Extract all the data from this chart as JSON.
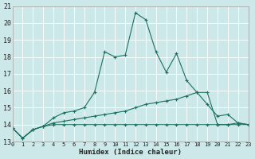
{
  "title": "",
  "xlabel": "Humidex (Indice chaleur)",
  "ylabel": "",
  "bg_color": "#cce8e8",
  "grid_color": "#b0d0d0",
  "line_color": "#1a7060",
  "x_values": [
    0,
    1,
    2,
    3,
    4,
    5,
    6,
    7,
    8,
    9,
    10,
    11,
    12,
    13,
    14,
    15,
    16,
    17,
    18,
    19,
    20,
    21,
    22,
    23
  ],
  "series1": [
    13.8,
    13.2,
    13.7,
    13.9,
    14.4,
    14.7,
    14.8,
    15.0,
    15.9,
    18.3,
    18.0,
    18.1,
    20.6,
    20.2,
    18.3,
    17.1,
    18.2,
    16.6,
    15.9,
    15.2,
    14.5,
    14.6,
    14.1,
    14.0
  ],
  "series2": [
    13.8,
    13.2,
    13.7,
    13.9,
    14.1,
    14.2,
    14.3,
    14.4,
    14.5,
    14.6,
    14.7,
    14.8,
    15.0,
    15.2,
    15.3,
    15.4,
    15.5,
    15.7,
    15.9,
    15.9,
    14.0,
    14.0,
    14.1,
    14.0
  ],
  "series3": [
    13.8,
    13.2,
    13.7,
    13.9,
    14.0,
    14.0,
    14.0,
    14.0,
    14.0,
    14.0,
    14.0,
    14.0,
    14.0,
    14.0,
    14.0,
    14.0,
    14.0,
    14.0,
    14.0,
    14.0,
    14.0,
    14.0,
    14.0,
    14.0
  ],
  "xlim": [
    0,
    23
  ],
  "ylim": [
    13,
    21
  ],
  "yticks": [
    13,
    14,
    15,
    16,
    17,
    18,
    19,
    20,
    21
  ],
  "xticks": [
    0,
    1,
    2,
    3,
    4,
    5,
    6,
    7,
    8,
    9,
    10,
    11,
    12,
    13,
    14,
    15,
    16,
    17,
    18,
    19,
    20,
    21,
    22,
    23
  ]
}
